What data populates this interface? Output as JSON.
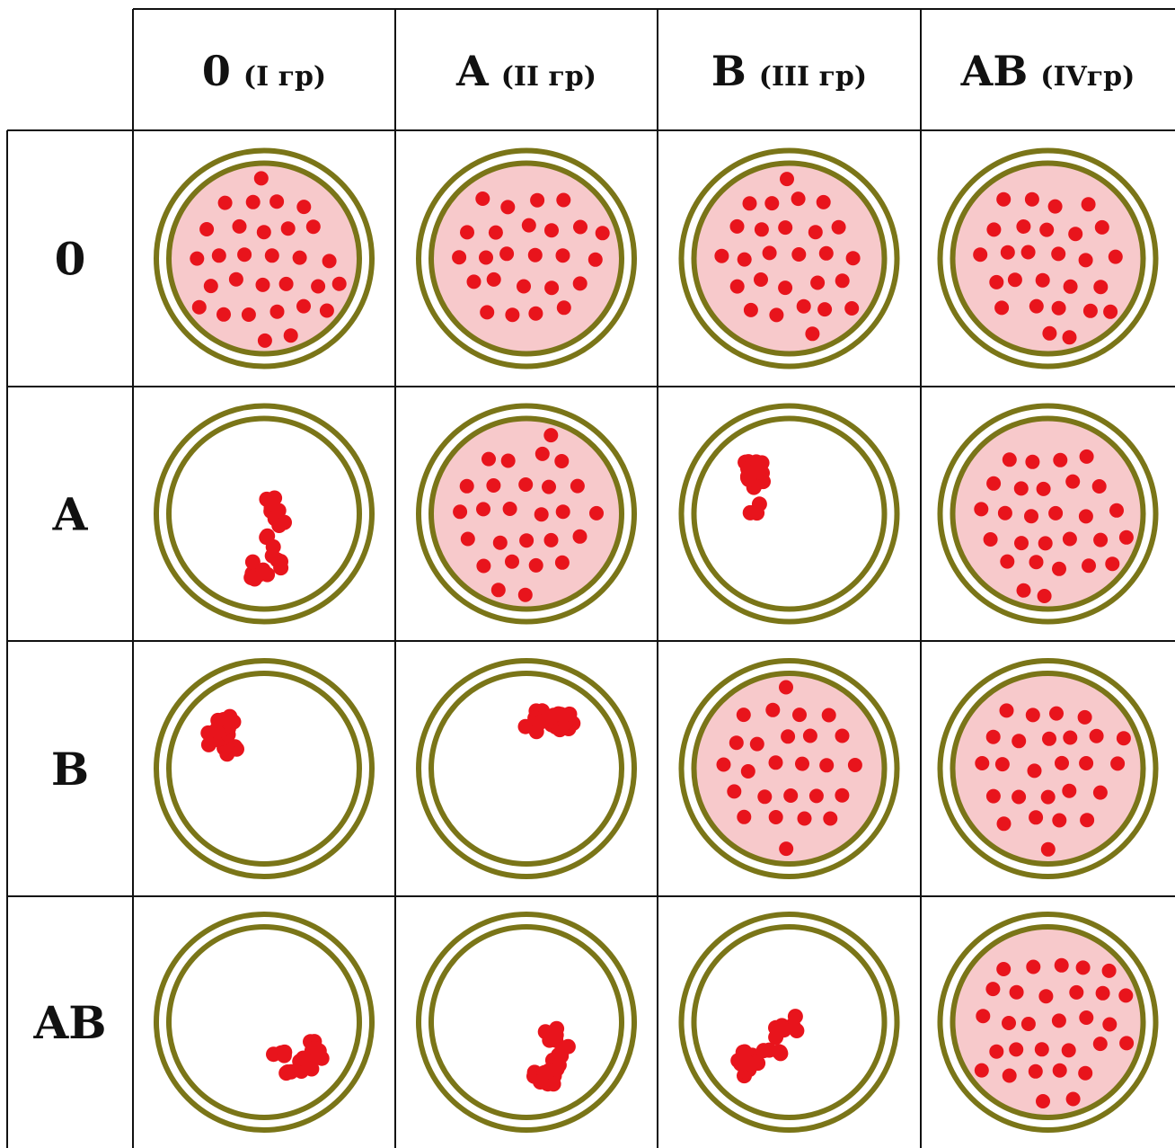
{
  "columns": [
    {
      "antigen": "0",
      "group": "(I гр)"
    },
    {
      "antigen": "A",
      "group": "(II гр)"
    },
    {
      "antigen": "B",
      "group": "(III гр)"
    },
    {
      "antigen": "AB",
      "group": "(IVгр)"
    }
  ],
  "rows": [
    {
      "label": "0",
      "cells": [
        "no-agglutination",
        "no-agglutination",
        "no-agglutination",
        "no-agglutination"
      ]
    },
    {
      "label": "A",
      "cells": [
        "agglutination",
        "no-agglutination",
        "agglutination",
        "no-agglutination"
      ]
    },
    {
      "label": "B",
      "cells": [
        "agglutination",
        "agglutination",
        "no-agglutination",
        "no-agglutination"
      ]
    },
    {
      "label": "AB",
      "cells": [
        "agglutination",
        "agglutination",
        "agglutination",
        "no-agglutination"
      ]
    }
  ],
  "colors": {
    "ring": "#7a7518",
    "serum": "#f7c9cb",
    "cell": "#e8141c",
    "grid": "#111111"
  }
}
